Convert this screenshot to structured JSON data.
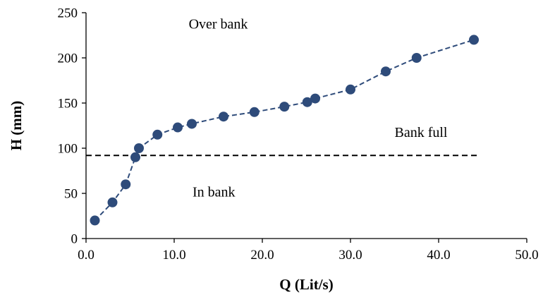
{
  "chart_data": {
    "type": "scatter",
    "xlabel": "Q (Lit/s)",
    "ylabel": "H (mm)",
    "xlim": [
      0,
      50
    ],
    "ylim": [
      0,
      250
    ],
    "x_ticks": [
      "0.0",
      "10.0",
      "20.0",
      "30.0",
      "40.0",
      "50.0"
    ],
    "y_ticks": [
      "0",
      "50",
      "100",
      "150",
      "200",
      "250"
    ],
    "grid": false,
    "series": [
      {
        "color": "#2e4b7a",
        "line_style": "dashed",
        "marker": "circle",
        "points": [
          {
            "x": 1.0,
            "y": 20
          },
          {
            "x": 3.0,
            "y": 40
          },
          {
            "x": 4.5,
            "y": 60
          },
          {
            "x": 5.6,
            "y": 90
          },
          {
            "x": 6.0,
            "y": 100
          },
          {
            "x": 8.1,
            "y": 115
          },
          {
            "x": 10.4,
            "y": 123
          },
          {
            "x": 12.0,
            "y": 127
          },
          {
            "x": 15.6,
            "y": 135
          },
          {
            "x": 19.1,
            "y": 140
          },
          {
            "x": 22.5,
            "y": 146
          },
          {
            "x": 25.1,
            "y": 151
          },
          {
            "x": 26.0,
            "y": 155
          },
          {
            "x": 30.0,
            "y": 165
          },
          {
            "x": 34.0,
            "y": 185
          },
          {
            "x": 37.5,
            "y": 200
          },
          {
            "x": 44.0,
            "y": 220
          }
        ]
      }
    ],
    "reference_line": {
      "y": 92,
      "x_start": 0,
      "x_end": 44.5,
      "color": "#000000",
      "line_style": "dashed"
    },
    "annotations": [
      {
        "text": "Over bank",
        "x": 15.0,
        "y": 238
      },
      {
        "text": "Bank full",
        "x": 38.0,
        "y": 118
      },
      {
        "text": "In bank",
        "x": 14.5,
        "y": 52
      }
    ]
  }
}
